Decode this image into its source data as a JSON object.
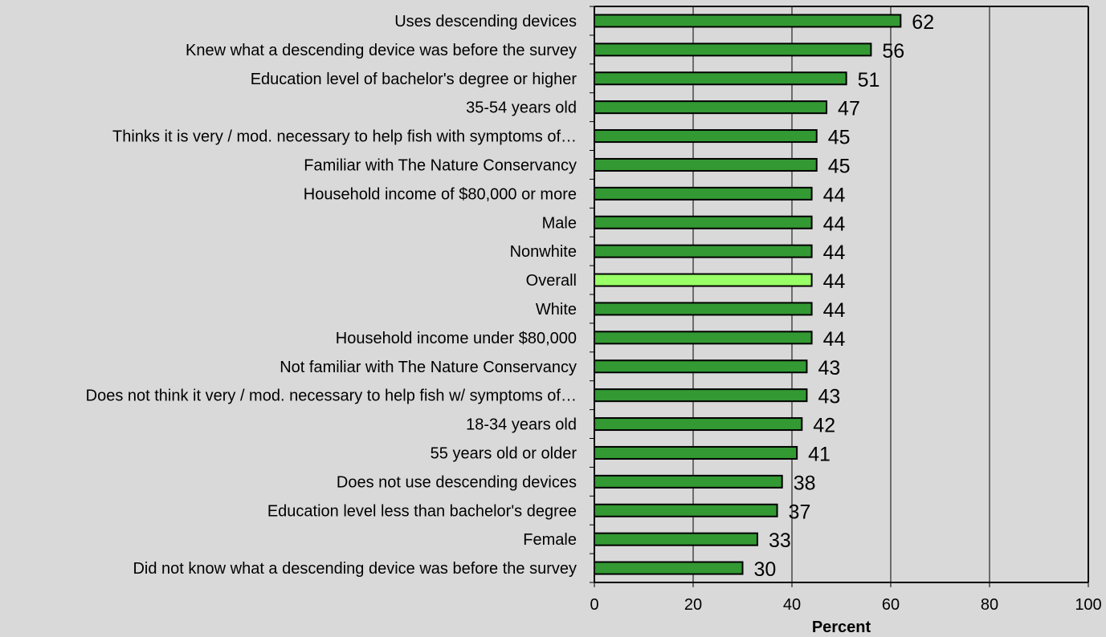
{
  "chart_data": {
    "type": "bar",
    "orientation": "horizontal",
    "categories": [
      "Uses descending devices",
      "Knew what a descending device was before the survey",
      "Education level of bachelor's degree or higher",
      "35-54 years old",
      "Thinks it is very / mod. necessary to help fish with symptoms of…",
      "Familiar with The Nature Conservancy",
      "Household income of $80,000 or more",
      "Male",
      "Nonwhite",
      "Overall",
      "White",
      "Household income under $80,000",
      "Not familiar with The Nature Conservancy",
      "Does not think it very / mod. necessary to help fish w/ symptoms of…",
      "18-34 years old",
      "55 years old or older",
      "Does not use descending devices",
      "Education level less than bachelor's degree",
      "Female",
      "Did not know what a descending device was before the survey"
    ],
    "values": [
      62,
      56,
      51,
      47,
      45,
      45,
      44,
      44,
      44,
      44,
      44,
      44,
      43,
      43,
      42,
      41,
      38,
      37,
      33,
      30
    ],
    "value_labels": [
      "62",
      "56",
      "51",
      "47",
      "45",
      "45",
      "44",
      "44",
      "44",
      "44",
      "44",
      "44",
      "43",
      "43",
      "42",
      "41",
      "38",
      "37",
      "33",
      "30"
    ],
    "highlight_category": "Overall",
    "xlabel": "Percent",
    "ylabel": "",
    "xlim": [
      0,
      100
    ],
    "xticks": [
      0,
      20,
      40,
      60,
      80,
      100
    ],
    "xtick_labels": [
      "0",
      "20",
      "40",
      "60",
      "80",
      "100"
    ],
    "grid": true,
    "legend": "none",
    "colors": {
      "bar": "#339933",
      "bar_highlight": "#99ff66",
      "bar_stroke": "#000000",
      "background": "#d9d9d9",
      "gridline": "#000000"
    }
  }
}
